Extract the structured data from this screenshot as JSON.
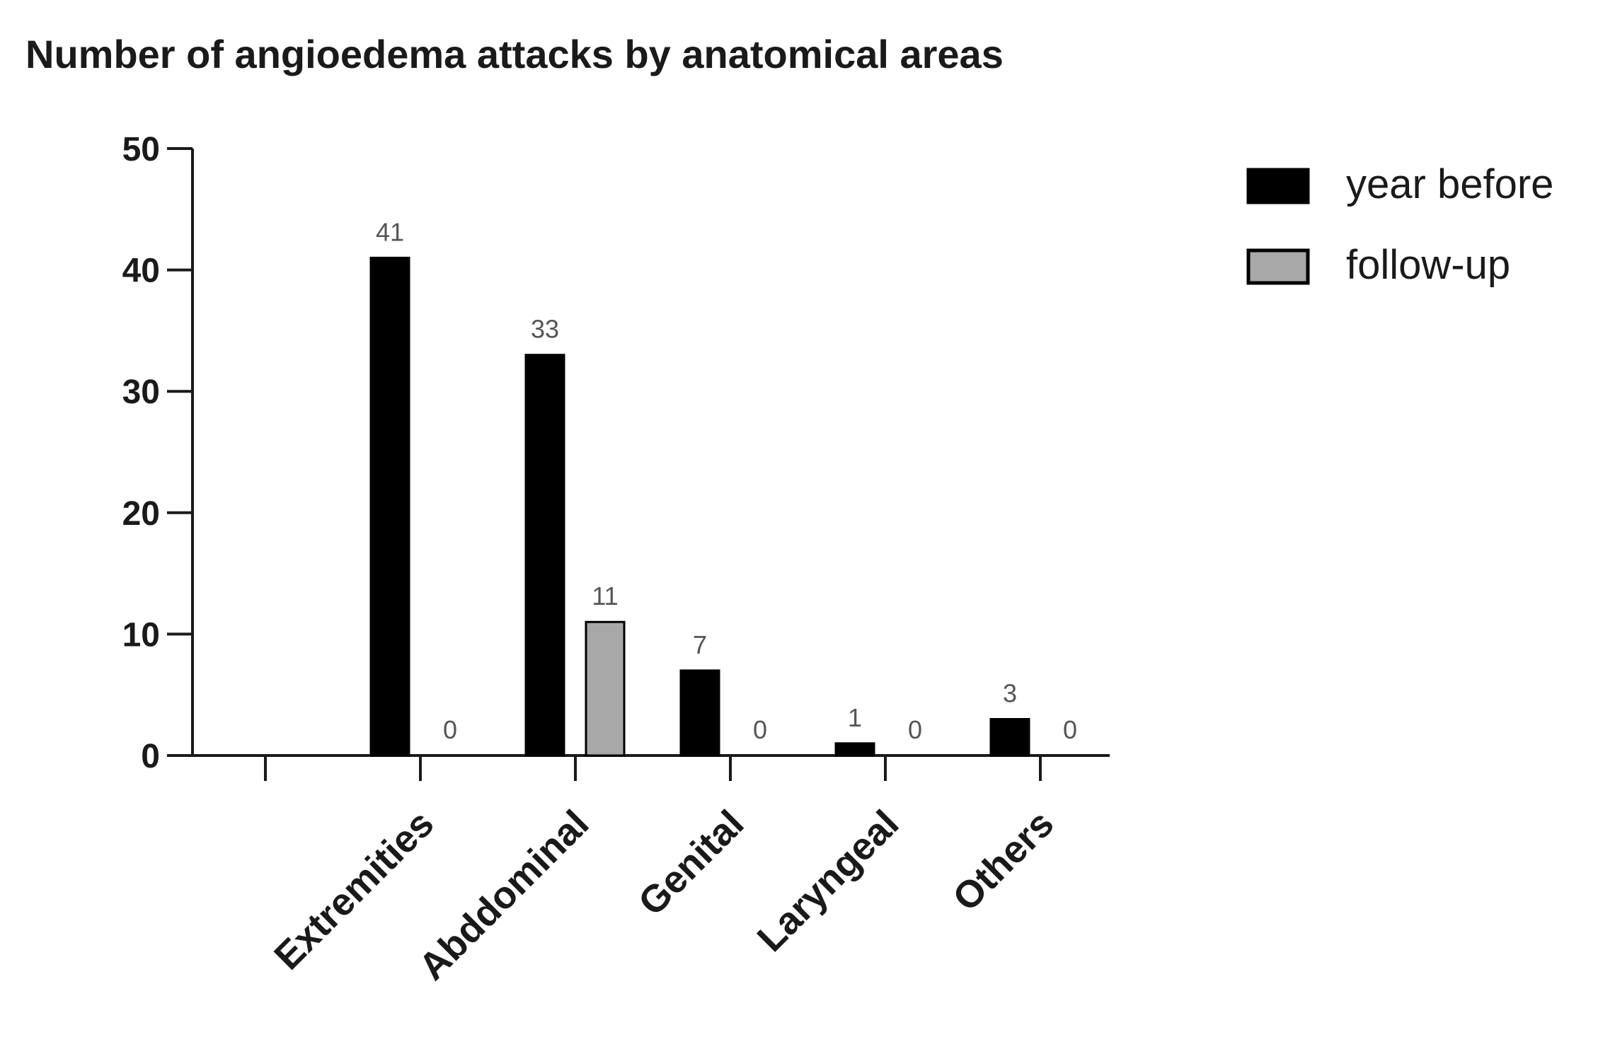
{
  "chart_data": {
    "type": "bar",
    "title": "Number of angioedema attacks by anatomical areas",
    "xlabel": "",
    "ylabel": "",
    "ylim": [
      0,
      50
    ],
    "yticks": [
      0,
      10,
      20,
      30,
      40,
      50
    ],
    "categories": [
      "",
      "Extremities",
      "Abddominal",
      "Genital",
      "Laryngeal",
      "Others"
    ],
    "series": [
      {
        "name": "year before",
        "color": "#000000",
        "values": [
          null,
          41,
          33,
          7,
          1,
          3
        ]
      },
      {
        "name": "follow-up",
        "color": "#a8a8a8",
        "values": [
          null,
          0,
          11,
          0,
          0,
          0
        ]
      }
    ],
    "data_labels": true,
    "grid": false,
    "legend_position": "top-right"
  }
}
